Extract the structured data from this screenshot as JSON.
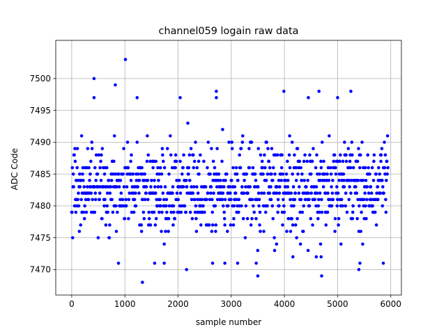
{
  "chart_data": {
    "type": "scatter",
    "title": "channel059 logain raw data",
    "xlabel": "sample number",
    "ylabel": "ADC Code",
    "xlim": [
      -300,
      6200
    ],
    "ylim": [
      7466,
      7506
    ],
    "xticks": [
      0,
      1000,
      2000,
      3000,
      4000,
      5000,
      6000
    ],
    "yticks": [
      7470,
      7475,
      7480,
      7485,
      7490,
      7495,
      7500
    ],
    "xtick_labels": [
      "0",
      "1000",
      "2000",
      "3000",
      "4000",
      "5000",
      "6000"
    ],
    "ytick_labels": [
      "7470",
      "7475",
      "7480",
      "7485",
      "7490",
      "7495",
      "7500"
    ],
    "grid": true,
    "marker_color": "#0000ff",
    "x_range": [
      0,
      5950
    ],
    "value_distribution": {
      "core_min": 7475,
      "core_max": 7491,
      "center": 7483
    },
    "notable_points": [
      {
        "x": 1010,
        "y": 7503
      },
      {
        "x": 420,
        "y": 7500
      },
      {
        "x": 820,
        "y": 7499
      },
      {
        "x": 2720,
        "y": 7498
      },
      {
        "x": 3990,
        "y": 7498
      },
      {
        "x": 4650,
        "y": 7498
      },
      {
        "x": 5250,
        "y": 7498
      },
      {
        "x": 420,
        "y": 7497
      },
      {
        "x": 1230,
        "y": 7497
      },
      {
        "x": 2040,
        "y": 7497
      },
      {
        "x": 2720,
        "y": 7497
      },
      {
        "x": 4450,
        "y": 7497
      },
      {
        "x": 5000,
        "y": 7497
      },
      {
        "x": 1330,
        "y": 7468
      },
      {
        "x": 3500,
        "y": 7469
      },
      {
        "x": 4700,
        "y": 7469
      },
      {
        "x": 5400,
        "y": 7470
      },
      {
        "x": 2160,
        "y": 7470
      },
      {
        "x": 880,
        "y": 7471
      },
      {
        "x": 1560,
        "y": 7471
      },
      {
        "x": 1740,
        "y": 7471
      },
      {
        "x": 2650,
        "y": 7471
      },
      {
        "x": 2880,
        "y": 7471
      },
      {
        "x": 3120,
        "y": 7471
      },
      {
        "x": 3470,
        "y": 7471
      },
      {
        "x": 5420,
        "y": 7471
      },
      {
        "x": 5860,
        "y": 7471
      },
      {
        "x": 4160,
        "y": 7472
      },
      {
        "x": 4600,
        "y": 7472
      },
      {
        "x": 4690,
        "y": 7472
      }
    ]
  }
}
